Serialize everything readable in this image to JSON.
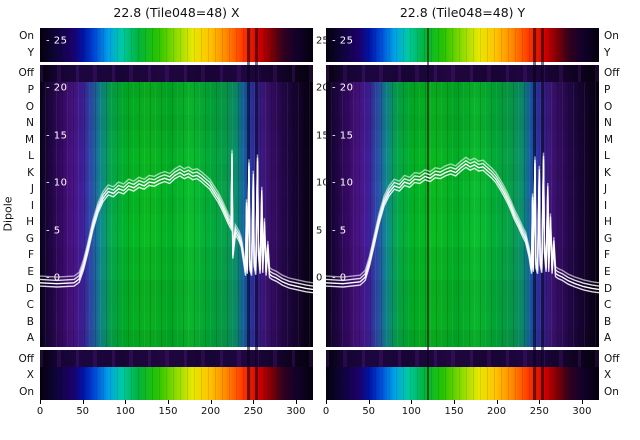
{
  "figure": {
    "ylabel": "Dipole",
    "x_tick_labels": [
      "0",
      "50",
      "100",
      "150",
      "200",
      "250",
      "300"
    ],
    "rows": [
      {
        "label": "On",
        "type": "cal"
      },
      {
        "label": "Y",
        "type": "cal"
      },
      {
        "label": "Off",
        "type": "off",
        "gap_before": true
      },
      {
        "label": "P",
        "type": "dipole"
      },
      {
        "label": "O",
        "type": "dipole"
      },
      {
        "label": "N",
        "type": "dipole"
      },
      {
        "label": "M",
        "type": "dipole"
      },
      {
        "label": "L",
        "type": "dipole"
      },
      {
        "label": "K",
        "type": "dipole"
      },
      {
        "label": "J",
        "type": "dipole"
      },
      {
        "label": "I",
        "type": "dipole"
      },
      {
        "label": "H",
        "type": "dipole"
      },
      {
        "label": "G",
        "type": "dipole"
      },
      {
        "label": "F",
        "type": "dipole"
      },
      {
        "label": "E",
        "type": "dipole"
      },
      {
        "label": "D",
        "type": "dipole"
      },
      {
        "label": "C",
        "type": "dipole"
      },
      {
        "label": "B",
        "type": "dipole"
      },
      {
        "label": "A",
        "type": "dipole"
      },
      {
        "label": "Off",
        "type": "off",
        "gap_before": true
      },
      {
        "label": "X",
        "type": "cal"
      },
      {
        "label": "On",
        "type": "cal"
      }
    ],
    "amp_ticks": [
      {
        "value": 25,
        "left_text": "- 25",
        "right_text": "25"
      },
      {
        "value": 20,
        "left_text": "- 20",
        "right_text": "20"
      },
      {
        "value": 15,
        "left_text": "- 15",
        "right_text": "15"
      },
      {
        "value": 10,
        "left_text": "- 10",
        "right_text": "10"
      },
      {
        "value": 5,
        "left_text": "- 5",
        "right_text": "5"
      },
      {
        "value": 0,
        "left_text": "- 0",
        "right_text": "0"
      }
    ],
    "colors": {
      "line": "#ffffff",
      "text": "#111111",
      "flag": "rgba(8,0,20,0.55)",
      "background": "#ffffff"
    },
    "row_gradients": {
      "cal": [
        [
          0,
          "#05010d"
        ],
        [
          0.05,
          "#0d0433"
        ],
        [
          0.12,
          "#1c006b"
        ],
        [
          0.16,
          "#0015a8"
        ],
        [
          0.2,
          "#0048d6"
        ],
        [
          0.25,
          "#00a0e8"
        ],
        [
          0.3,
          "#00c9a3"
        ],
        [
          0.36,
          "#00b43c"
        ],
        [
          0.43,
          "#27c400"
        ],
        [
          0.5,
          "#8fdc00"
        ],
        [
          0.56,
          "#e8e800"
        ],
        [
          0.62,
          "#ffc400"
        ],
        [
          0.68,
          "#ff8a00"
        ],
        [
          0.74,
          "#ff3c00"
        ],
        [
          0.8,
          "#d40000"
        ],
        [
          0.85,
          "#7a0006"
        ],
        [
          0.89,
          "#33001f"
        ],
        [
          0.94,
          "#12012a"
        ],
        [
          1,
          "#05010d"
        ]
      ],
      "off": [
        [
          0,
          "#05010d"
        ],
        [
          0.06,
          "#140430"
        ],
        [
          0.15,
          "#1d0640"
        ],
        [
          0.3,
          "#180536"
        ],
        [
          0.45,
          "#20073f"
        ],
        [
          0.6,
          "#180434"
        ],
        [
          0.75,
          "#1e0640"
        ],
        [
          0.88,
          "#130329"
        ],
        [
          1,
          "#05010d"
        ]
      ],
      "dipole": [
        [
          0,
          "#08021a"
        ],
        [
          0.04,
          "#1e0640"
        ],
        [
          0.08,
          "#33085e"
        ],
        [
          0.12,
          "#44127a"
        ],
        [
          0.155,
          "#3a1c8f"
        ],
        [
          0.19,
          "#274a9e"
        ],
        [
          0.22,
          "#0f7c86"
        ],
        [
          0.26,
          "#049b46"
        ],
        [
          0.32,
          "#00a521"
        ],
        [
          0.4,
          "#0aab1e"
        ],
        [
          0.48,
          "#00a023"
        ],
        [
          0.55,
          "#0ab02a"
        ],
        [
          0.62,
          "#009e33"
        ],
        [
          0.68,
          "#079246"
        ],
        [
          0.72,
          "#0b8468"
        ],
        [
          0.75,
          "#14539a"
        ],
        [
          0.78,
          "#2b2a96"
        ],
        [
          0.82,
          "#3a1372"
        ],
        [
          0.86,
          "#2e0a56"
        ],
        [
          0.9,
          "#1e0640"
        ],
        [
          0.95,
          "#120327"
        ],
        [
          1,
          "#05010d"
        ]
      ]
    }
  },
  "chart_data": [
    {
      "type": "heatmap",
      "title": "22.8 (Tile048=48) X",
      "xlabel": "",
      "ylabel": "Dipole",
      "x_range": [
        0,
        320
      ],
      "x_ticks": [
        0,
        50,
        100,
        150,
        200,
        250,
        300
      ],
      "amplitude_ticks": [
        25,
        20,
        15,
        10,
        5,
        0
      ],
      "rows_top_to_bottom": [
        "On",
        "Y",
        "Off",
        "P",
        "O",
        "N",
        "M",
        "L",
        "K",
        "J",
        "I",
        "H",
        "G",
        "F",
        "E",
        "D",
        "C",
        "B",
        "A",
        "Off",
        "X",
        "On"
      ],
      "row_value_summary": {
        "cal_rows": "high power across band, full rainbow blue-to-red between channels ~55 and ~285",
        "off_rows": "near-zero power, dark purple",
        "dipole_rows": "mid-level green bandpass between channels ~70 and ~230, purple/dark at band edges"
      },
      "flagged_channels": [
        [
          242,
          246
        ],
        [
          252,
          256
        ]
      ],
      "show_right_amp_labels": true,
      "overlay_line": {
        "name": "bandpass amplitude (all dipoles)",
        "points": [
          [
            0,
            -0.5
          ],
          [
            20,
            -0.6
          ],
          [
            40,
            -0.5
          ],
          [
            46,
            -0.1
          ],
          [
            51,
            1.2
          ],
          [
            56,
            3.0
          ],
          [
            62,
            5.4
          ],
          [
            68,
            7.2
          ],
          [
            74,
            8.4
          ],
          [
            80,
            9.1
          ],
          [
            86,
            8.9
          ],
          [
            92,
            9.4
          ],
          [
            98,
            9.2
          ],
          [
            104,
            9.7
          ],
          [
            110,
            9.5
          ],
          [
            116,
            9.9
          ],
          [
            122,
            9.7
          ],
          [
            128,
            10.1
          ],
          [
            134,
            10.0
          ],
          [
            140,
            10.3
          ],
          [
            146,
            10.5
          ],
          [
            152,
            10.3
          ],
          [
            158,
            10.8
          ],
          [
            164,
            11.1
          ],
          [
            169,
            10.8
          ],
          [
            174,
            11.0
          ],
          [
            179,
            10.7
          ],
          [
            184,
            10.8
          ],
          [
            189,
            10.5
          ],
          [
            194,
            10.1
          ],
          [
            199,
            9.7
          ],
          [
            204,
            9.0
          ],
          [
            209,
            8.3
          ],
          [
            213,
            7.6
          ],
          [
            217,
            6.8
          ],
          [
            221,
            6.0
          ],
          [
            224,
            5.5
          ],
          [
            225,
            12.8
          ],
          [
            226,
            2.4
          ],
          [
            229,
            4.9
          ],
          [
            233,
            4.3
          ],
          [
            236,
            3.6
          ],
          [
            239,
            1.8
          ],
          [
            241,
            0.6
          ],
          [
            242,
            7.6
          ],
          [
            243,
            0.8
          ],
          [
            245,
            11.8
          ],
          [
            246,
            1.2
          ],
          [
            248,
            0.6
          ],
          [
            250,
            10.6
          ],
          [
            251,
            1.6
          ],
          [
            253,
            0.7
          ],
          [
            255,
            12.3
          ],
          [
            256,
            2.8
          ],
          [
            258,
            0.8
          ],
          [
            260,
            8.9
          ],
          [
            261,
            0.9
          ],
          [
            263,
            5.6
          ],
          [
            265,
            0.6
          ],
          [
            267,
            3.2
          ],
          [
            269,
            0.4
          ],
          [
            272,
            0.2
          ],
          [
            277,
            0.0
          ],
          [
            284,
            -0.4
          ],
          [
            292,
            -0.7
          ],
          [
            302,
            -0.9
          ],
          [
            312,
            -1.1
          ],
          [
            320,
            -1.2
          ]
        ]
      }
    },
    {
      "type": "heatmap",
      "title": "22.8 (Tile048=48) Y",
      "xlabel": "",
      "ylabel": "Dipole",
      "x_range": [
        0,
        320
      ],
      "x_ticks": [
        0,
        50,
        100,
        150,
        200,
        250,
        300
      ],
      "amplitude_ticks": [
        25,
        20,
        15,
        10,
        5,
        0
      ],
      "rows_top_to_bottom": [
        "On",
        "Y",
        "Off",
        "P",
        "O",
        "N",
        "M",
        "L",
        "K",
        "J",
        "I",
        "H",
        "G",
        "F",
        "E",
        "D",
        "C",
        "B",
        "A",
        "Off",
        "X",
        "On"
      ],
      "row_value_summary": {
        "cal_rows": "high power across band, full rainbow blue-to-red between channels ~55 and ~285",
        "off_rows": "near-zero power, dark purple",
        "dipole_rows": "mid-level green bandpass between channels ~70 and ~230, purple/dark at band edges"
      },
      "flagged_channels": [
        [
          118,
          121
        ],
        [
          242,
          246
        ],
        [
          252,
          256
        ]
      ],
      "show_right_amp_labels": false,
      "overlay_line": {
        "name": "bandpass amplitude (all dipoles)",
        "points": [
          [
            0,
            -0.5
          ],
          [
            20,
            -0.6
          ],
          [
            40,
            -0.4
          ],
          [
            46,
            0.1
          ],
          [
            51,
            1.6
          ],
          [
            56,
            3.6
          ],
          [
            62,
            6.0
          ],
          [
            68,
            7.9
          ],
          [
            74,
            9.0
          ],
          [
            80,
            9.7
          ],
          [
            86,
            9.5
          ],
          [
            92,
            10.1
          ],
          [
            98,
            9.9
          ],
          [
            104,
            10.4
          ],
          [
            110,
            10.3
          ],
          [
            116,
            10.7
          ],
          [
            122,
            10.5
          ],
          [
            128,
            10.9
          ],
          [
            134,
            10.8
          ],
          [
            140,
            11.1
          ],
          [
            146,
            11.3
          ],
          [
            152,
            11.1
          ],
          [
            158,
            11.6
          ],
          [
            164,
            12.0
          ],
          [
            169,
            11.7
          ],
          [
            174,
            11.9
          ],
          [
            179,
            11.6
          ],
          [
            184,
            11.7
          ],
          [
            189,
            11.3
          ],
          [
            194,
            10.9
          ],
          [
            199,
            10.4
          ],
          [
            204,
            9.7
          ],
          [
            209,
            8.9
          ],
          [
            213,
            8.2
          ],
          [
            217,
            7.4
          ],
          [
            221,
            6.5
          ],
          [
            226,
            5.6
          ],
          [
            230,
            4.8
          ],
          [
            234,
            4.1
          ],
          [
            238,
            2.6
          ],
          [
            241,
            0.8
          ],
          [
            242,
            8.2
          ],
          [
            243,
            1.0
          ],
          [
            245,
            12.1
          ],
          [
            246,
            1.4
          ],
          [
            248,
            0.8
          ],
          [
            250,
            11.1
          ],
          [
            251,
            1.8
          ],
          [
            253,
            0.9
          ],
          [
            255,
            12.5
          ],
          [
            256,
            3.0
          ],
          [
            258,
            1.0
          ],
          [
            260,
            9.3
          ],
          [
            261,
            1.0
          ],
          [
            263,
            6.1
          ],
          [
            265,
            0.8
          ],
          [
            267,
            3.6
          ],
          [
            269,
            0.5
          ],
          [
            272,
            0.3
          ],
          [
            277,
            0.1
          ],
          [
            284,
            -0.3
          ],
          [
            292,
            -0.6
          ],
          [
            302,
            -0.9
          ],
          [
            312,
            -1.1
          ],
          [
            320,
            -1.2
          ]
        ]
      }
    }
  ]
}
